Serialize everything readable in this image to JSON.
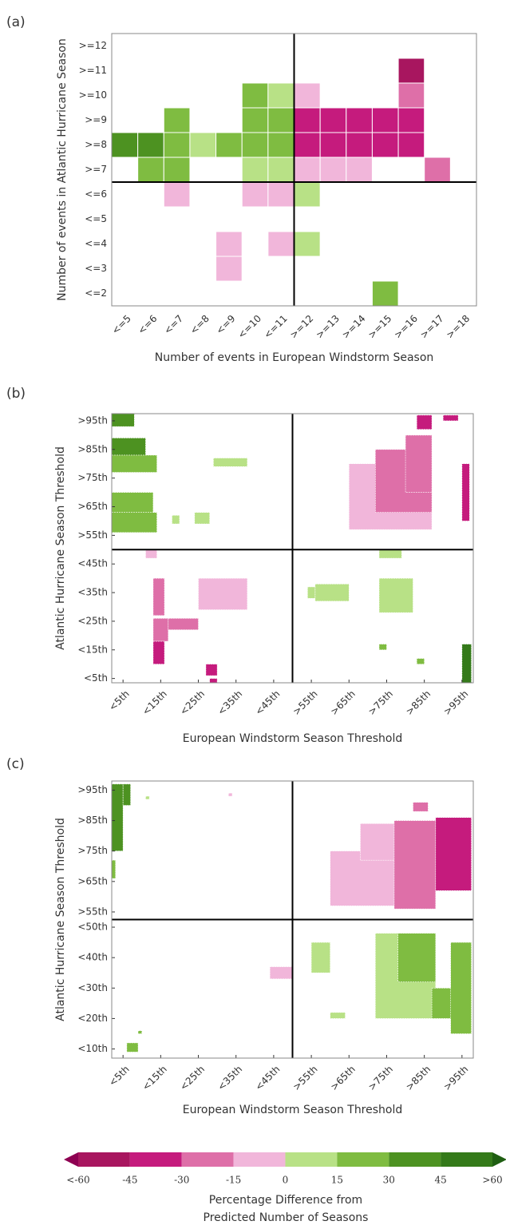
{
  "chart_data": [
    {
      "type": "heatmap",
      "panel_label": "(a)",
      "xlabel": "Number of events in European Windstorm Season",
      "ylabel": "Number of events in Atlantic Hurricane Season",
      "x": [
        "<=5",
        "<=6",
        "<=7",
        "<=8",
        "<=9",
        "<=10",
        "<=11",
        ">=12",
        ">=13",
        ">=14",
        ">=15",
        ">=16",
        ">=17",
        ">=18"
      ],
      "y": [
        ">=12",
        ">=11",
        ">=10",
        ">=9",
        ">=8",
        ">=7",
        "<=6",
        "<=5",
        "<=4",
        "<=3",
        "<=2"
      ],
      "values": [
        [
          null,
          null,
          null,
          null,
          null,
          null,
          null,
          null,
          null,
          null,
          null,
          null,
          null,
          null
        ],
        [
          null,
          null,
          null,
          null,
          null,
          null,
          null,
          null,
          null,
          null,
          null,
          -50,
          null,
          null
        ],
        [
          null,
          null,
          null,
          null,
          null,
          25,
          7,
          -7,
          null,
          null,
          null,
          -22,
          null,
          null
        ],
        [
          null,
          null,
          25,
          null,
          null,
          25,
          25,
          -35,
          -35,
          -35,
          -35,
          -35,
          null,
          null
        ],
        [
          38,
          38,
          22,
          7,
          22,
          25,
          25,
          -35,
          -35,
          -35,
          -35,
          -35,
          null,
          null
        ],
        [
          null,
          22,
          22,
          null,
          null,
          7,
          7,
          -7,
          -7,
          -7,
          null,
          null,
          -22,
          null
        ],
        [
          null,
          null,
          -7,
          null,
          null,
          -7,
          -7,
          7,
          null,
          null,
          null,
          null,
          null,
          null
        ],
        [
          null,
          null,
          null,
          null,
          null,
          null,
          null,
          null,
          null,
          null,
          null,
          null,
          null,
          null
        ],
        [
          null,
          null,
          null,
          null,
          -7,
          null,
          -7,
          7,
          null,
          null,
          null,
          null,
          null,
          null
        ],
        [
          null,
          null,
          null,
          null,
          -7,
          null,
          null,
          null,
          null,
          null,
          null,
          null,
          null,
          null
        ],
        [
          null,
          null,
          null,
          null,
          null,
          null,
          null,
          null,
          null,
          null,
          22,
          null,
          null,
          null
        ]
      ]
    },
    {
      "type": "patches",
      "panel_label": "(b)",
      "xlabel": "European Windstorm Season Threshold",
      "ylabel": "Atlantic Hurricane Season Threshold",
      "xlim": [
        2,
        98
      ],
      "ylim": [
        3.5,
        97.5
      ],
      "xline": 50,
      "yline": 50,
      "xticks": [
        {
          "value": 5,
          "label": "<5th"
        },
        {
          "value": 15,
          "label": "<15th"
        },
        {
          "value": 25,
          "label": "<25th"
        },
        {
          "value": 35,
          "label": "<35th"
        },
        {
          "value": 45,
          "label": "<45th"
        },
        {
          "value": 55,
          "label": ">55th"
        },
        {
          "value": 65,
          "label": ">65th"
        },
        {
          "value": 75,
          "label": ">75th"
        },
        {
          "value": 85,
          "label": ">85th"
        },
        {
          "value": 95,
          "label": ">95th"
        }
      ],
      "yticks": [
        {
          "value": 5,
          "label": "<5th"
        },
        {
          "value": 15,
          "label": "<15th"
        },
        {
          "value": 25,
          "label": "<25th"
        },
        {
          "value": 35,
          "label": "<35th"
        },
        {
          "value": 45,
          "label": "<45th"
        },
        {
          "value": 55,
          "label": ">55th"
        },
        {
          "value": 65,
          "label": ">65th"
        },
        {
          "value": 75,
          "label": ">75th"
        },
        {
          "value": 85,
          "label": ">85th"
        },
        {
          "value": 95,
          "label": ">95th"
        }
      ],
      "patches": [
        {
          "x": [
            2,
            8
          ],
          "y": [
            93,
            97.5
          ],
          "value": 40
        },
        {
          "x": [
            2,
            11
          ],
          "y": [
            82,
            89
          ],
          "value": 32
        },
        {
          "x": [
            2,
            14
          ],
          "y": [
            77,
            83
          ],
          "value": 25
        },
        {
          "x": [
            2,
            13
          ],
          "y": [
            62,
            70
          ],
          "value": 20
        },
        {
          "x": [
            2,
            14
          ],
          "y": [
            56,
            63
          ],
          "value": 22
        },
        {
          "x": [
            11,
            14
          ],
          "y": [
            47,
            50
          ],
          "value": -7
        },
        {
          "x": [
            29,
            38
          ],
          "y": [
            79,
            82
          ],
          "value": 7
        },
        {
          "x": [
            18,
            20
          ],
          "y": [
            59,
            62
          ],
          "value": 7
        },
        {
          "x": [
            24,
            28
          ],
          "y": [
            59,
            63
          ],
          "value": 7
        },
        {
          "x": [
            65,
            87
          ],
          "y": [
            57,
            80
          ],
          "value": -7
        },
        {
          "x": [
            72,
            87
          ],
          "y": [
            63,
            85
          ],
          "value": -20
        },
        {
          "x": [
            80,
            87
          ],
          "y": [
            70,
            90
          ],
          "value": -25
        },
        {
          "x": [
            83,
            87
          ],
          "y": [
            92,
            97
          ],
          "value": -45
        },
        {
          "x": [
            90,
            94
          ],
          "y": [
            95,
            97
          ],
          "value": -45
        },
        {
          "x": [
            95,
            97
          ],
          "y": [
            60,
            80
          ],
          "value": -40
        },
        {
          "x": [
            73,
            79
          ],
          "y": [
            47,
            50
          ],
          "value": 7
        },
        {
          "x": [
            13,
            16
          ],
          "y": [
            27,
            40
          ],
          "value": -20
        },
        {
          "x": [
            13,
            17
          ],
          "y": [
            18,
            26
          ],
          "value": -30
        },
        {
          "x": [
            13,
            16
          ],
          "y": [
            10,
            18
          ],
          "value": -40
        },
        {
          "x": [
            17,
            25
          ],
          "y": [
            22,
            26
          ],
          "value": -25
        },
        {
          "x": [
            25,
            38
          ],
          "y": [
            29,
            40
          ],
          "value": -7
        },
        {
          "x": [
            27,
            30
          ],
          "y": [
            6,
            10
          ],
          "value": -35
        },
        {
          "x": [
            28,
            30
          ],
          "y": [
            3.5,
            5
          ],
          "value": -40
        },
        {
          "x": [
            73,
            82
          ],
          "y": [
            28,
            40
          ],
          "value": 7
        },
        {
          "x": [
            56,
            65
          ],
          "y": [
            32,
            38
          ],
          "value": 10
        },
        {
          "x": [
            83,
            85
          ],
          "y": [
            10,
            12
          ],
          "value": 20
        },
        {
          "x": [
            73,
            75
          ],
          "y": [
            15,
            17
          ],
          "value": 22
        },
        {
          "x": [
            95,
            97.5
          ],
          "y": [
            3.5,
            17
          ],
          "value": 45
        },
        {
          "x": [
            54,
            56
          ],
          "y": [
            33,
            37
          ],
          "value": 7
        }
      ]
    },
    {
      "type": "patches",
      "panel_label": "(c)",
      "xlabel": "European Windstorm Season Threshold",
      "ylabel": "Atlantic Hurricane Season Threshold",
      "xlim": [
        2,
        98
      ],
      "ylim": [
        7,
        98
      ],
      "xline": 50,
      "yline": 52.5,
      "xticks": [
        {
          "value": 5,
          "label": "<5th"
        },
        {
          "value": 15,
          "label": "<15th"
        },
        {
          "value": 25,
          "label": "<25th"
        },
        {
          "value": 35,
          "label": "<35th"
        },
        {
          "value": 45,
          "label": "<45th"
        },
        {
          "value": 55,
          "label": ">55th"
        },
        {
          "value": 65,
          "label": ">65th"
        },
        {
          "value": 75,
          "label": ">75th"
        },
        {
          "value": 85,
          "label": ">85th"
        },
        {
          "value": 95,
          "label": ">95th"
        }
      ],
      "yticks": [
        {
          "value": 10,
          "label": "<10th"
        },
        {
          "value": 20,
          "label": "<20th"
        },
        {
          "value": 30,
          "label": "<30th"
        },
        {
          "value": 40,
          "label": "<40th"
        },
        {
          "value": 50,
          "label": "<50th"
        },
        {
          "value": 55,
          "label": ">55th"
        },
        {
          "value": 65,
          "label": ">65th"
        },
        {
          "value": 75,
          "label": ">75th"
        },
        {
          "value": 85,
          "label": ">85th"
        },
        {
          "value": 95,
          "label": ">95th"
        }
      ],
      "patches": [
        {
          "x": [
            2,
            5
          ],
          "y": [
            75,
            97
          ],
          "value": 30
        },
        {
          "x": [
            5,
            7
          ],
          "y": [
            90,
            97
          ],
          "value": 40
        },
        {
          "x": [
            2,
            3
          ],
          "y": [
            66,
            72
          ],
          "value": 15
        },
        {
          "x": [
            33,
            34
          ],
          "y": [
            93,
            94
          ],
          "value": -7
        },
        {
          "x": [
            11,
            12
          ],
          "y": [
            92,
            93
          ],
          "value": 7
        },
        {
          "x": [
            60,
            80
          ],
          "y": [
            57,
            75
          ],
          "value": -7
        },
        {
          "x": [
            68,
            87
          ],
          "y": [
            72,
            84
          ],
          "value": -15
        },
        {
          "x": [
            77,
            88
          ],
          "y": [
            56,
            85
          ],
          "value": -25
        },
        {
          "x": [
            88,
            97.5
          ],
          "y": [
            62,
            86
          ],
          "value": -40
        },
        {
          "x": [
            82,
            86
          ],
          "y": [
            88,
            91
          ],
          "value": -30
        },
        {
          "x": [
            72,
            88
          ],
          "y": [
            20,
            48
          ],
          "value": 7
        },
        {
          "x": [
            78,
            88
          ],
          "y": [
            32,
            48
          ],
          "value": 20
        },
        {
          "x": [
            87,
            93
          ],
          "y": [
            20,
            30
          ],
          "value": 15
        },
        {
          "x": [
            92,
            97.5
          ],
          "y": [
            15,
            45
          ],
          "value": 25
        },
        {
          "x": [
            55,
            60
          ],
          "y": [
            35,
            45
          ],
          "value": 7
        },
        {
          "x": [
            44,
            50
          ],
          "y": [
            33,
            37
          ],
          "value": -7
        },
        {
          "x": [
            60,
            64
          ],
          "y": [
            20,
            22
          ],
          "value": 7
        },
        {
          "x": [
            6,
            9
          ],
          "y": [
            9,
            12
          ],
          "value": 20
        },
        {
          "x": [
            9,
            10
          ],
          "y": [
            15,
            16
          ],
          "value": 20
        }
      ]
    }
  ],
  "colorbar": {
    "label": [
      "Percentage Difference from",
      "Predicted Number of Seasons"
    ],
    "ticks": [
      {
        "value": -60,
        "label": "<-60"
      },
      -45,
      -30,
      -15,
      0,
      15,
      30,
      45,
      {
        "value": 60,
        "label": ">60"
      }
    ],
    "colors": [
      "#8e0152",
      "#a8165f",
      "#c51b7d",
      "#de6fa8",
      "#f1b6da",
      "#b8e186",
      "#7fbc41",
      "#4d9221",
      "#347a1a",
      "#1f5e12"
    ]
  }
}
